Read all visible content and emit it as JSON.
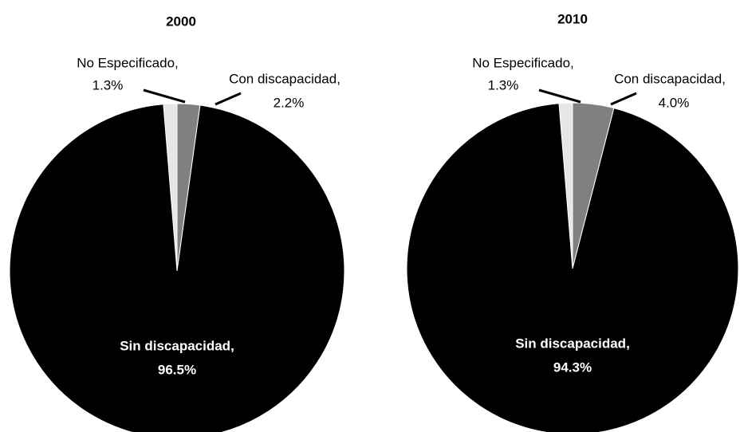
{
  "chart_data": [
    {
      "type": "pie",
      "title": "2000",
      "categories": [
        "No Especificado,",
        "Con discapacidad,",
        "Sin discapacidad,"
      ],
      "values": [
        1.3,
        2.2,
        96.5
      ],
      "value_labels": [
        "1.3%",
        "2.2%",
        "96.5%"
      ],
      "colors": [
        "#e6e6e6",
        "#808080",
        "#000000"
      ]
    },
    {
      "type": "pie",
      "title": "2010",
      "categories": [
        "No Especificado,",
        "Con discapacidad,",
        "Sin discapacidad,"
      ],
      "values": [
        1.3,
        4.0,
        94.3
      ],
      "value_labels": [
        "1.3%",
        "4.0%",
        "94.3%"
      ],
      "colors": [
        "#e6e6e6",
        "#808080",
        "#000000"
      ]
    }
  ]
}
